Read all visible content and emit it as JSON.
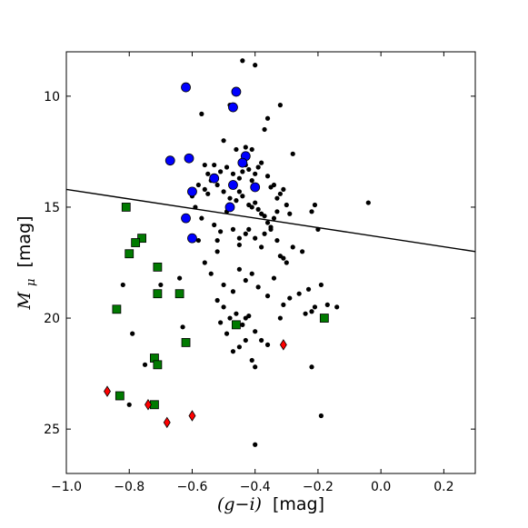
{
  "chart_data": {
    "type": "scatter",
    "title": "",
    "xlabel_math": "(g−i)",
    "xlabel_unit": "[mag]",
    "ylabel_symbol": "M",
    "ylabel_subscript": "μ",
    "ylabel_unit": "[mag]",
    "xlim": [
      -1.0,
      0.3
    ],
    "ylim": [
      27.0,
      8.0
    ],
    "y_inverted": true,
    "grid": false,
    "x_ticks": [
      -1.0,
      -0.8,
      -0.6,
      -0.4,
      -0.2,
      0.0,
      0.2
    ],
    "x_tick_labels": [
      "−1.0",
      "−0.8",
      "−0.6",
      "−0.4",
      "−0.2",
      "0.0",
      "0.2"
    ],
    "y_ticks": [
      10,
      15,
      20,
      25
    ],
    "y_tick_labels": [
      "10",
      "15",
      "20",
      "25"
    ],
    "line": {
      "x": [
        -1.0,
        0.3
      ],
      "y": [
        14.2,
        17.0
      ],
      "color": "#000000"
    },
    "series": [
      {
        "marker": "circle-small",
        "color": "#000000",
        "points": [
          [
            -0.44,
            8.4
          ],
          [
            -0.4,
            8.6
          ],
          [
            -0.57,
            10.8
          ],
          [
            -0.48,
            10.4
          ],
          [
            -0.36,
            11.0
          ],
          [
            -0.32,
            10.4
          ],
          [
            -0.28,
            12.6
          ],
          [
            -0.5,
            12.0
          ],
          [
            -0.46,
            12.4
          ],
          [
            -0.43,
            12.3
          ],
          [
            -0.41,
            12.4
          ],
          [
            -0.37,
            11.5
          ],
          [
            -0.56,
            13.1
          ],
          [
            -0.55,
            13.5
          ],
          [
            -0.54,
            13.8
          ],
          [
            -0.53,
            13.1
          ],
          [
            -0.51,
            13.4
          ],
          [
            -0.49,
            13.2
          ],
          [
            -0.47,
            13.5
          ],
          [
            -0.45,
            13.7
          ],
          [
            -0.44,
            13.4
          ],
          [
            -0.43,
            13.1
          ],
          [
            -0.42,
            13.3
          ],
          [
            -0.41,
            13.8
          ],
          [
            -0.4,
            13.5
          ],
          [
            -0.39,
            13.2
          ],
          [
            -0.38,
            13.0
          ],
          [
            -0.36,
            13.6
          ],
          [
            -0.35,
            14.1
          ],
          [
            -0.34,
            14.0
          ],
          [
            -0.33,
            14.6
          ],
          [
            -0.32,
            14.4
          ],
          [
            -0.31,
            14.2
          ],
          [
            -0.3,
            14.9
          ],
          [
            -0.29,
            15.3
          ],
          [
            -0.58,
            14.0
          ],
          [
            -0.56,
            14.2
          ],
          [
            -0.55,
            14.4
          ],
          [
            -0.52,
            14.0
          ],
          [
            -0.5,
            14.3
          ],
          [
            -0.48,
            14.6
          ],
          [
            -0.46,
            14.7
          ],
          [
            -0.45,
            14.3
          ],
          [
            -0.44,
            14.5
          ],
          [
            -0.42,
            14.9
          ],
          [
            -0.41,
            15.0
          ],
          [
            -0.4,
            14.8
          ],
          [
            -0.39,
            15.1
          ],
          [
            -0.38,
            15.3
          ],
          [
            -0.37,
            15.4
          ],
          [
            -0.36,
            15.7
          ],
          [
            -0.35,
            15.9
          ],
          [
            -0.34,
            15.5
          ],
          [
            -0.33,
            15.2
          ],
          [
            -0.6,
            14.5
          ],
          [
            -0.59,
            15.0
          ],
          [
            -0.57,
            15.5
          ],
          [
            -0.53,
            15.8
          ],
          [
            -0.51,
            16.1
          ],
          [
            -0.49,
            15.2
          ],
          [
            -0.47,
            16.0
          ],
          [
            -0.45,
            16.4
          ],
          [
            -0.43,
            16.2
          ],
          [
            -0.42,
            16.0
          ],
          [
            -0.4,
            16.4
          ],
          [
            -0.38,
            16.8
          ],
          [
            -0.37,
            16.2
          ],
          [
            -0.35,
            16.0
          ],
          [
            -0.33,
            16.5
          ],
          [
            -0.32,
            17.2
          ],
          [
            -0.3,
            17.5
          ],
          [
            -0.28,
            16.8
          ],
          [
            -0.25,
            17.0
          ],
          [
            -0.2,
            16.0
          ],
          [
            -0.22,
            15.2
          ],
          [
            -0.21,
            14.9
          ],
          [
            -0.04,
            14.8
          ],
          [
            -0.31,
            17.3
          ],
          [
            -0.58,
            16.5
          ],
          [
            -0.56,
            17.5
          ],
          [
            -0.54,
            18.0
          ],
          [
            -0.52,
            17.0
          ],
          [
            -0.5,
            18.5
          ],
          [
            -0.47,
            18.8
          ],
          [
            -0.45,
            17.8
          ],
          [
            -0.43,
            18.3
          ],
          [
            -0.41,
            18.0
          ],
          [
            -0.39,
            18.6
          ],
          [
            -0.36,
            19.0
          ],
          [
            -0.34,
            18.2
          ],
          [
            -0.31,
            19.4
          ],
          [
            -0.29,
            19.1
          ],
          [
            -0.26,
            18.9
          ],
          [
            -0.23,
            18.7
          ],
          [
            -0.21,
            19.5
          ],
          [
            -0.19,
            18.5
          ],
          [
            -0.17,
            19.4
          ],
          [
            -0.14,
            19.5
          ],
          [
            -0.24,
            19.8
          ],
          [
            -0.22,
            19.7
          ],
          [
            -0.32,
            20.0
          ],
          [
            -0.52,
            19.2
          ],
          [
            -0.5,
            19.5
          ],
          [
            -0.48,
            20.0
          ],
          [
            -0.46,
            19.8
          ],
          [
            -0.44,
            20.3
          ],
          [
            -0.42,
            19.9
          ],
          [
            -0.4,
            20.6
          ],
          [
            -0.38,
            21.0
          ],
          [
            -0.36,
            21.2
          ],
          [
            -0.51,
            20.2
          ],
          [
            -0.49,
            20.7
          ],
          [
            -0.47,
            21.5
          ],
          [
            -0.45,
            21.3
          ],
          [
            -0.43,
            21.0
          ],
          [
            -0.41,
            21.9
          ],
          [
            -0.4,
            22.2
          ],
          [
            -0.63,
            20.4
          ],
          [
            -0.64,
            18.2
          ],
          [
            -0.7,
            18.5
          ],
          [
            -0.82,
            18.5
          ],
          [
            -0.79,
            20.7
          ],
          [
            -0.75,
            22.1
          ],
          [
            -0.22,
            22.2
          ],
          [
            -0.71,
            22.0
          ],
          [
            -0.19,
            24.4
          ],
          [
            -0.4,
            25.7
          ],
          [
            -0.8,
            23.9
          ],
          [
            -0.43,
            20.0
          ],
          [
            -0.45,
            16.7
          ],
          [
            -0.52,
            16.5
          ]
        ]
      },
      {
        "marker": "circle-large",
        "color": "#0000ff",
        "points": [
          [
            -0.62,
            9.6
          ],
          [
            -0.46,
            9.8
          ],
          [
            -0.47,
            10.5
          ],
          [
            -0.67,
            12.9
          ],
          [
            -0.61,
            12.8
          ],
          [
            -0.43,
            12.7
          ],
          [
            -0.44,
            13.0
          ],
          [
            -0.53,
            13.7
          ],
          [
            -0.47,
            14.0
          ],
          [
            -0.4,
            14.1
          ],
          [
            -0.6,
            14.3
          ],
          [
            -0.48,
            15.0
          ],
          [
            -0.62,
            15.5
          ],
          [
            -0.6,
            16.4
          ]
        ]
      },
      {
        "marker": "square",
        "color": "#007a00",
        "points": [
          [
            -0.81,
            15.0
          ],
          [
            -0.76,
            16.4
          ],
          [
            -0.78,
            16.6
          ],
          [
            -0.8,
            17.1
          ],
          [
            -0.71,
            17.7
          ],
          [
            -0.71,
            18.9
          ],
          [
            -0.64,
            18.9
          ],
          [
            -0.84,
            19.6
          ],
          [
            -0.46,
            20.3
          ],
          [
            -0.18,
            20.0
          ],
          [
            -0.62,
            21.1
          ],
          [
            -0.72,
            21.8
          ],
          [
            -0.71,
            22.1
          ],
          [
            -0.83,
            23.5
          ],
          [
            -0.72,
            23.9
          ]
        ]
      },
      {
        "marker": "diamond",
        "color": "#ff0000",
        "points": [
          [
            -0.87,
            23.3
          ],
          [
            -0.74,
            23.9
          ],
          [
            -0.68,
            24.7
          ],
          [
            -0.6,
            24.4
          ],
          [
            -0.31,
            21.2
          ]
        ]
      }
    ]
  }
}
